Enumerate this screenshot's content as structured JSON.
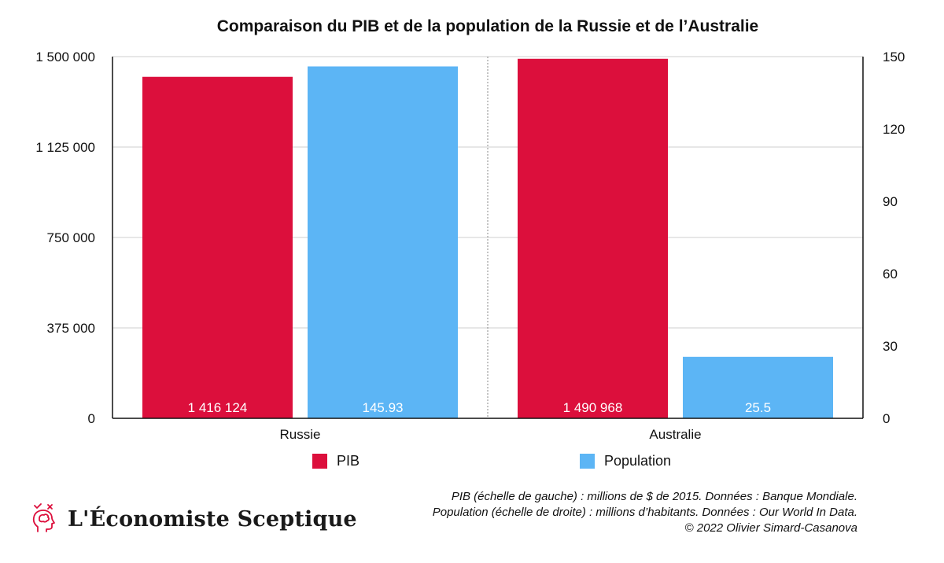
{
  "chart_data": {
    "type": "bar",
    "title": "Comparaison du PIB et de la population de la Russie et de l’Australie",
    "categories": [
      "Russie",
      "Australie"
    ],
    "series": [
      {
        "name": "PIB",
        "axis": "left",
        "color": "#dc0f3c",
        "values": [
          1416124,
          1490968
        ],
        "labels": [
          "1 416 124",
          "1 490 968"
        ]
      },
      {
        "name": "Population",
        "axis": "right",
        "color": "#5cb5f5",
        "values": [
          145.93,
          25.5
        ],
        "labels": [
          "145.93",
          "25.5"
        ]
      }
    ],
    "y_left": {
      "ylim": [
        0,
        1500000
      ],
      "ticks": [
        "0",
        "375 000",
        "750 000",
        "1 125 000",
        "1 500 000"
      ]
    },
    "y_right": {
      "ylim": [
        0,
        150
      ],
      "ticks": [
        "0",
        "30",
        "60",
        "90",
        "120",
        "150"
      ]
    },
    "grid": true,
    "legend": "bottom"
  },
  "legend": {
    "pib": "PIB",
    "population": "Population"
  },
  "notes": [
    "PIB (échelle de gauche) : millions de $ de 2015. Données : Banque Mondiale.",
    "Population (échelle de droite) : millions d’habitants. Données : Our World In Data.",
    "© 2022 Olivier Simard-Casanova"
  ],
  "brand": {
    "name": "L'Économiste Sceptique",
    "icon": "head-brain-icon"
  }
}
